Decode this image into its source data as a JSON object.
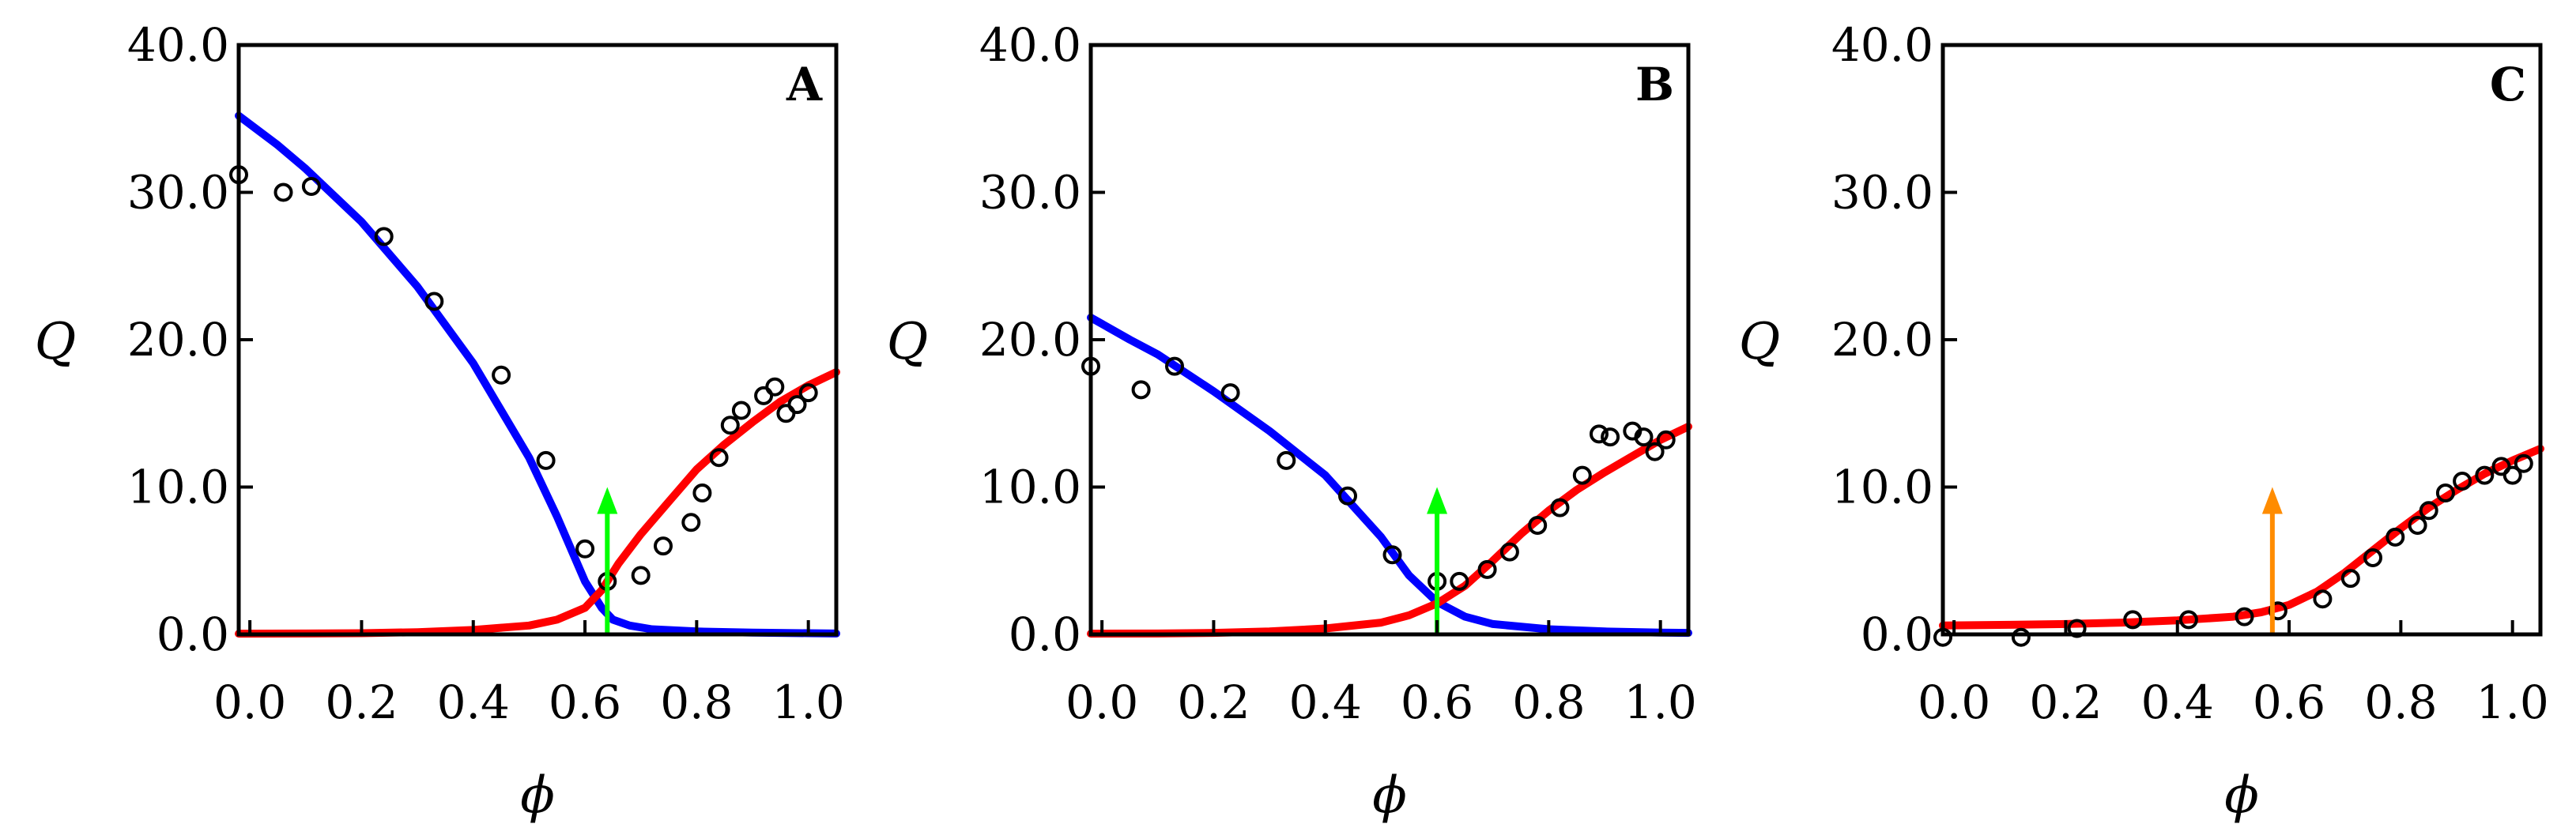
{
  "chart_data": [
    {
      "type": "line",
      "panel_label": "A",
      "xlabel": "ϕ",
      "ylabel": "Q",
      "xlim": [
        -0.02,
        1.05
      ],
      "ylim": [
        0,
        40
      ],
      "x_ticks": [
        0.0,
        0.2,
        0.4,
        0.6,
        0.8,
        1.0
      ],
      "x_tick_labels": [
        "0.0",
        "0.2",
        "0.4",
        "0.6",
        "0.8",
        "1.0"
      ],
      "y_ticks": [
        0,
        10,
        20,
        30,
        40
      ],
      "y_tick_labels": [
        "0.0",
        "10.0",
        "20.0",
        "30.0",
        "40.0"
      ],
      "series": [
        {
          "color": "#0000ff",
          "x": [
            -0.02,
            0.05,
            0.1,
            0.2,
            0.3,
            0.4,
            0.5,
            0.55,
            0.6,
            0.63,
            0.65,
            0.68,
            0.72,
            0.8,
            0.9,
            1.0,
            1.05
          ],
          "y": [
            35.2,
            33.2,
            31.6,
            28.0,
            23.6,
            18.4,
            12.0,
            8.0,
            3.6,
            1.8,
            1.0,
            0.6,
            0.35,
            0.2,
            0.12,
            0.08,
            0.06
          ]
        },
        {
          "color": "#ff0000",
          "x": [
            -0.02,
            0.1,
            0.2,
            0.3,
            0.4,
            0.5,
            0.55,
            0.6,
            0.63,
            0.66,
            0.7,
            0.75,
            0.8,
            0.85,
            0.9,
            0.95,
            1.0,
            1.05
          ],
          "y": [
            0.05,
            0.06,
            0.08,
            0.15,
            0.3,
            0.6,
            1.0,
            1.8,
            3.0,
            4.8,
            6.8,
            9.0,
            11.2,
            12.9,
            14.4,
            15.8,
            16.9,
            17.8
          ]
        }
      ],
      "points": {
        "x": [
          -0.02,
          0.06,
          0.11,
          0.24,
          0.33,
          0.45,
          0.53,
          0.6,
          0.64,
          0.7,
          0.74,
          0.79,
          0.81,
          0.84,
          0.86,
          0.88,
          0.92,
          0.94,
          0.96,
          0.98,
          1.0
        ],
        "y": [
          31.2,
          30.0,
          30.4,
          27.0,
          22.6,
          17.6,
          11.8,
          5.8,
          3.6,
          4.0,
          6.0,
          7.6,
          9.6,
          12.0,
          14.2,
          15.2,
          16.2,
          16.8,
          15.0,
          15.6,
          16.4
        ]
      },
      "marker": {
        "x": 0.64,
        "y_from": 0,
        "y_to": 10,
        "color": "#00ff00"
      }
    },
    {
      "type": "line",
      "panel_label": "B",
      "xlabel": "ϕ",
      "ylabel": "Q",
      "xlim": [
        -0.02,
        1.05
      ],
      "ylim": [
        0,
        40
      ],
      "x_ticks": [
        0.0,
        0.2,
        0.4,
        0.6,
        0.8,
        1.0
      ],
      "x_tick_labels": [
        "0.0",
        "0.2",
        "0.4",
        "0.6",
        "0.8",
        "1.0"
      ],
      "y_ticks": [
        0,
        10,
        20,
        30,
        40
      ],
      "y_tick_labels": [
        "0.0",
        "10.0",
        "20.0",
        "30.0",
        "40.0"
      ],
      "series": [
        {
          "color": "#0000ff",
          "x": [
            -0.02,
            0.05,
            0.1,
            0.2,
            0.3,
            0.4,
            0.5,
            0.55,
            0.6,
            0.65,
            0.7,
            0.8,
            0.9,
            1.0,
            1.05
          ],
          "y": [
            21.5,
            20.0,
            19.0,
            16.5,
            13.8,
            10.8,
            6.6,
            4.0,
            2.2,
            1.2,
            0.7,
            0.35,
            0.2,
            0.12,
            0.1
          ]
        },
        {
          "color": "#ff0000",
          "x": [
            -0.02,
            0.1,
            0.2,
            0.3,
            0.4,
            0.5,
            0.55,
            0.6,
            0.65,
            0.7,
            0.75,
            0.8,
            0.85,
            0.9,
            0.95,
            1.0,
            1.05
          ],
          "y": [
            0.05,
            0.06,
            0.1,
            0.2,
            0.4,
            0.8,
            1.3,
            2.1,
            3.3,
            5.0,
            6.8,
            8.4,
            9.8,
            11.0,
            12.1,
            13.2,
            14.1
          ]
        }
      ],
      "points": {
        "x": [
          -0.02,
          0.07,
          0.13,
          0.23,
          0.33,
          0.44,
          0.52,
          0.6,
          0.64,
          0.69,
          0.73,
          0.78,
          0.82,
          0.86,
          0.89,
          0.91,
          0.95,
          0.97,
          0.99,
          1.01
        ],
        "y": [
          18.2,
          16.6,
          18.2,
          16.4,
          11.8,
          9.4,
          5.4,
          3.6,
          3.6,
          4.4,
          5.6,
          7.4,
          8.6,
          10.8,
          13.6,
          13.4,
          13.8,
          13.4,
          12.4,
          13.2
        ]
      },
      "marker": {
        "x": 0.6,
        "y_from": 0,
        "y_to": 10,
        "color": "#00ff00"
      }
    },
    {
      "type": "line",
      "panel_label": "C",
      "xlabel": "ϕ",
      "ylabel": "Q",
      "xlim": [
        -0.02,
        1.05
      ],
      "ylim": [
        0,
        40
      ],
      "x_ticks": [
        0.0,
        0.2,
        0.4,
        0.6,
        0.8,
        1.0
      ],
      "x_tick_labels": [
        "0.0",
        "0.2",
        "0.4",
        "0.6",
        "0.8",
        "1.0"
      ],
      "y_ticks": [
        0,
        10,
        20,
        30,
        40
      ],
      "y_tick_labels": [
        "0.0",
        "10.0",
        "20.0",
        "30.0",
        "40.0"
      ],
      "series": [
        {
          "color": "#ff0000",
          "x": [
            -0.02,
            0.1,
            0.2,
            0.3,
            0.4,
            0.5,
            0.55,
            0.6,
            0.65,
            0.7,
            0.75,
            0.8,
            0.85,
            0.9,
            0.95,
            1.0,
            1.05
          ],
          "y": [
            0.6,
            0.65,
            0.7,
            0.8,
            0.95,
            1.2,
            1.5,
            2.0,
            2.9,
            4.2,
            5.7,
            7.2,
            8.6,
            9.8,
            10.9,
            11.8,
            12.6
          ]
        }
      ],
      "points": {
        "x": [
          -0.02,
          0.12,
          0.22,
          0.32,
          0.42,
          0.52,
          0.58,
          0.66,
          0.71,
          0.75,
          0.79,
          0.83,
          0.85,
          0.88,
          0.91,
          0.95,
          0.98,
          1.0,
          1.02
        ],
        "y": [
          -0.2,
          -0.2,
          0.4,
          1.0,
          1.0,
          1.2,
          1.6,
          2.4,
          3.8,
          5.2,
          6.6,
          7.4,
          8.4,
          9.6,
          10.4,
          10.8,
          11.4,
          10.8,
          11.6
        ]
      },
      "marker": {
        "x": 0.57,
        "y_from": 0,
        "y_to": 10,
        "color": "#ff8c00"
      }
    }
  ]
}
